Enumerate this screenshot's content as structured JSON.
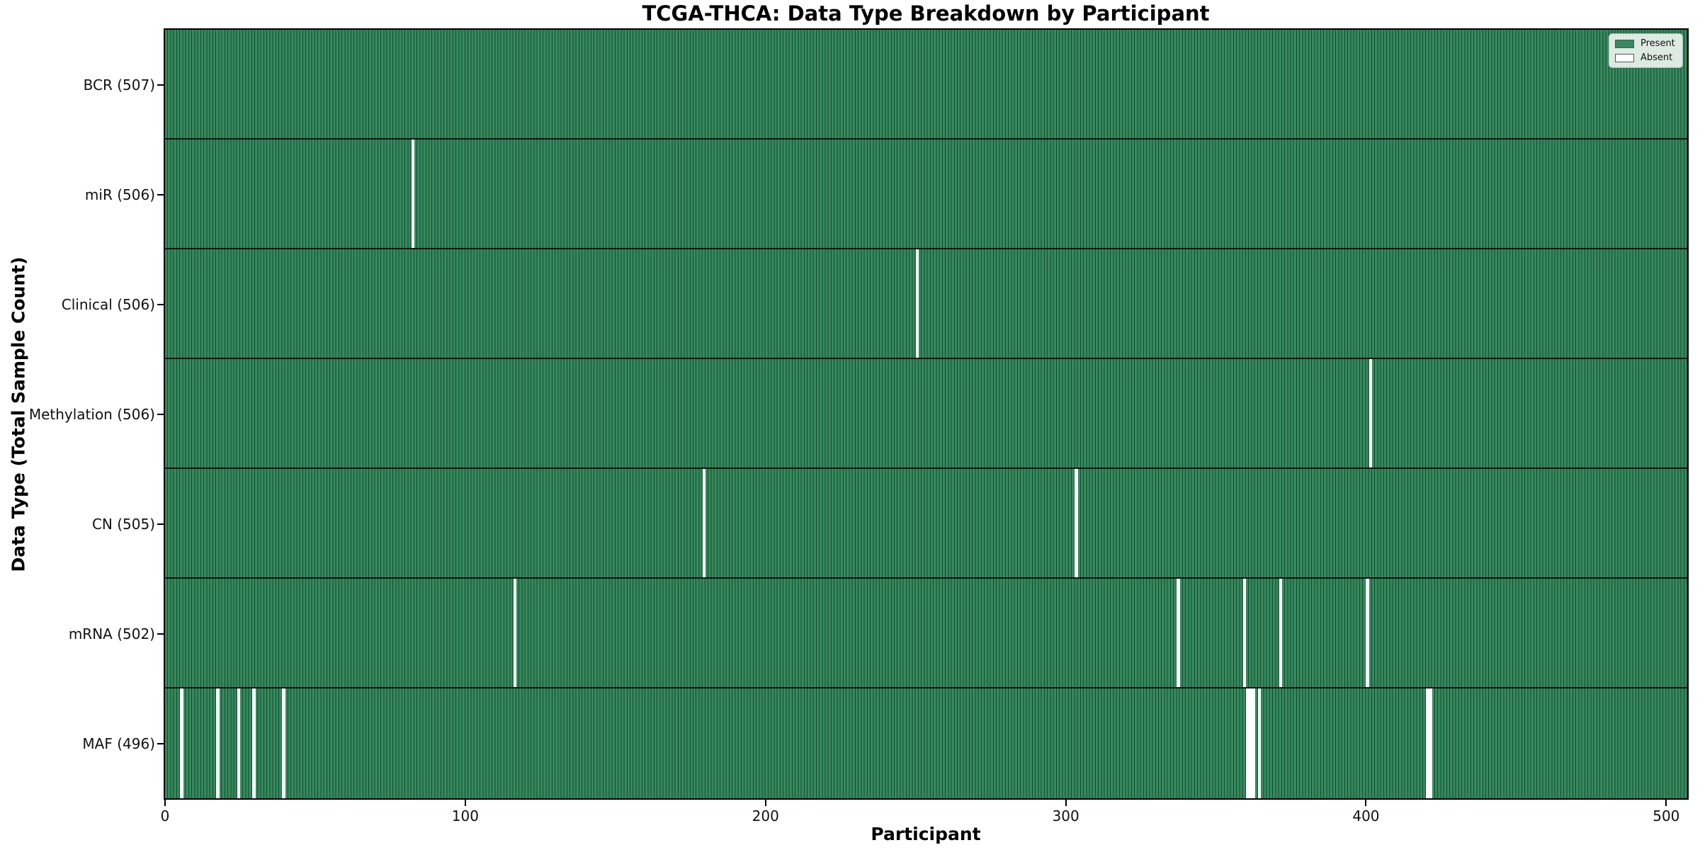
{
  "chart_data": {
    "type": "heatmap",
    "title": "TCGA-THCA: Data Type Breakdown by Participant",
    "xlabel": "Participant",
    "ylabel": "Data Type (Total Sample Count)",
    "x_ticks": [
      0,
      100,
      200,
      300,
      400,
      500
    ],
    "x_range": [
      0,
      507
    ],
    "n_participants": 507,
    "grid": false,
    "legend_position": "upper right",
    "legend_entries": [
      {
        "label": "Present",
        "color": "#358a5e"
      },
      {
        "label": "Absent",
        "color": "#ffffff"
      }
    ],
    "colors": {
      "present_fill": "#358a5e",
      "bar_edge": "#17492e",
      "absent_fill": "#ffffff",
      "row_separator": "#131313",
      "plot_border": "#000000"
    },
    "rows": [
      {
        "data_type": "BCR",
        "label": "BCR (507)",
        "total": 507,
        "absent_participants": []
      },
      {
        "data_type": "miR",
        "label": "miR (506)",
        "total": 506,
        "absent_participants": [
          82
        ]
      },
      {
        "data_type": "Clinical",
        "label": "Clinical (506)",
        "total": 506,
        "absent_participants": [
          250
        ]
      },
      {
        "data_type": "Methylation",
        "label": "Methylation (506)",
        "total": 506,
        "absent_participants": [
          401
        ]
      },
      {
        "data_type": "CN",
        "label": "CN (505)",
        "total": 505,
        "absent_participants": [
          179,
          303
        ]
      },
      {
        "data_type": "mRNA",
        "label": "mRNA (502)",
        "total": 502,
        "absent_participants": [
          116,
          337,
          359,
          371,
          400
        ]
      },
      {
        "data_type": "MAF",
        "label": "MAF (496)",
        "total": 496,
        "absent_participants": [
          5,
          17,
          24,
          29,
          39,
          360,
          361,
          362,
          364,
          420,
          421
        ]
      }
    ]
  }
}
